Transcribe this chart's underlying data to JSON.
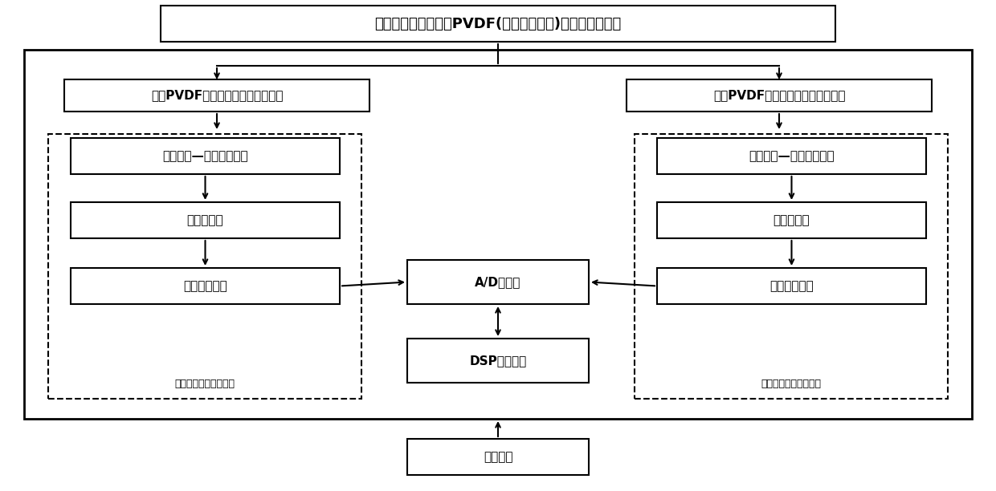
{
  "title": "双层十字交叉结构的PVDF(聚偏二氟乙烯)谷物损失传感器",
  "top_left_label": "上层PVDF压电薄膜阵列的信号输出",
  "top_right_label": "下层PVDF压电薄膜阵列的信号输出",
  "left_box1": "上层电荷—电压转换电路",
  "left_box2": "绝对值电路",
  "left_box3": "带通滤波电路",
  "left_dashed_label": "上层信号调理电路阵列",
  "right_box1": "下层电荷—电压转换电路",
  "right_box2": "绝对值电路",
  "right_box3": "带通滤波电路",
  "right_dashed_label": "下层信号调理电路阵列",
  "center_box1": "A/D转换器",
  "center_box2": "DSP微控制器",
  "bottom_label": "电源电路",
  "bg_color": "#ffffff",
  "box_color": "#ffffff",
  "border_color": "#000000",
  "text_color": "#000000",
  "font_size": 11,
  "font_size_title": 13,
  "font_size_label": 9
}
